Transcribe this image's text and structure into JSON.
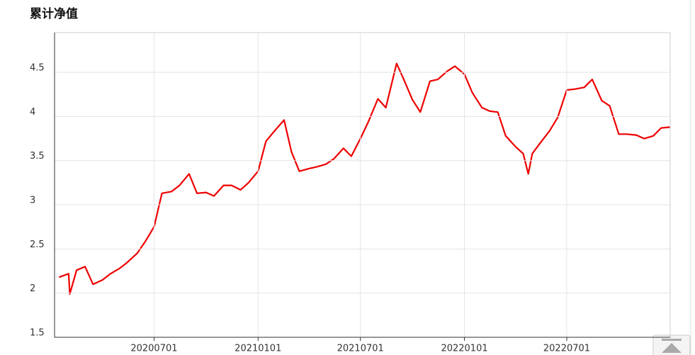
{
  "chart_data": {
    "type": "line",
    "title": "累计净值",
    "color": "#ee0000",
    "grid": true,
    "x": [
      "2020-01-15",
      "2020-02-01",
      "2020-02-03",
      "2020-02-15",
      "2020-03-01",
      "2020-03-15",
      "2020-04-01",
      "2020-04-15",
      "2020-05-01",
      "2020-05-15",
      "2020-06-01",
      "2020-06-15",
      "2020-07-01",
      "2020-07-15",
      "2020-08-01",
      "2020-08-15",
      "2020-09-01",
      "2020-09-15",
      "2020-10-01",
      "2020-10-15",
      "2020-11-01",
      "2020-11-15",
      "2020-12-01",
      "2020-12-15",
      "2021-01-01",
      "2021-01-15",
      "2021-02-01",
      "2021-02-16",
      "2021-03-01",
      "2021-03-15",
      "2021-04-01",
      "2021-04-15",
      "2021-05-01",
      "2021-05-15",
      "2021-06-01",
      "2021-06-15",
      "2021-07-01",
      "2021-07-15",
      "2021-08-01",
      "2021-08-15",
      "2021-09-03",
      "2021-09-15",
      "2021-10-01",
      "2021-10-15",
      "2021-11-01",
      "2021-11-15",
      "2021-12-01",
      "2021-12-15",
      "2022-01-01",
      "2022-01-15",
      "2022-02-01",
      "2022-02-15",
      "2022-03-01",
      "2022-03-15",
      "2022-04-01",
      "2022-04-15",
      "2022-04-24",
      "2022-05-01",
      "2022-05-15",
      "2022-06-01",
      "2022-06-15",
      "2022-07-01",
      "2022-07-15",
      "2022-08-01",
      "2022-08-15",
      "2022-09-01",
      "2022-09-15",
      "2022-10-01",
      "2022-10-15",
      "2022-11-01",
      "2022-11-15",
      "2022-12-01",
      "2022-12-15",
      "2022-12-31"
    ],
    "values": [
      2.18,
      2.22,
      1.99,
      2.26,
      2.3,
      2.1,
      2.15,
      2.22,
      2.28,
      2.35,
      2.45,
      2.58,
      2.75,
      3.13,
      3.15,
      3.22,
      3.35,
      3.13,
      3.14,
      3.1,
      3.22,
      3.22,
      3.17,
      3.25,
      3.38,
      3.72,
      3.85,
      3.96,
      3.6,
      3.38,
      3.41,
      3.43,
      3.46,
      3.52,
      3.64,
      3.55,
      3.75,
      3.94,
      4.2,
      4.1,
      4.6,
      4.43,
      4.19,
      4.05,
      4.4,
      4.42,
      4.51,
      4.57,
      4.48,
      4.27,
      4.1,
      4.06,
      4.05,
      3.78,
      3.66,
      3.58,
      3.35,
      3.58,
      3.7,
      3.84,
      3.99,
      4.3,
      4.31,
      4.33,
      4.42,
      4.18,
      4.12,
      3.8,
      3.8,
      3.79,
      3.75,
      3.78,
      3.87,
      3.88
    ],
    "xlim": [
      "2020-01-07",
      "2022-12-31"
    ],
    "xticks": [
      {
        "value": "2020-07-01",
        "label": "20200701"
      },
      {
        "value": "2021-01-01",
        "label": "20210101"
      },
      {
        "value": "2021-07-01",
        "label": "20210701"
      },
      {
        "value": "2022-01-01",
        "label": "20220101"
      },
      {
        "value": "2022-07-01",
        "label": "20220701"
      }
    ],
    "ylim": [
      1.5,
      4.95
    ],
    "yticks": [
      1.5,
      2,
      2.5,
      3,
      3.5,
      4,
      4.5
    ]
  }
}
